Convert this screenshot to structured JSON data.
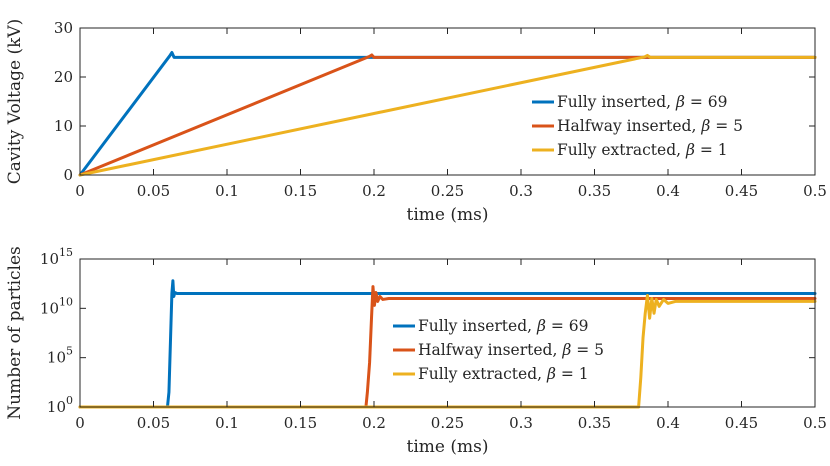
{
  "chart_data": [
    {
      "type": "line",
      "ylabel": "Cavity Voltage (kV)",
      "xlabel": "time (ms)",
      "xlim": [
        0,
        0.5
      ],
      "ylim": [
        0,
        30
      ],
      "xticks": [
        "0",
        "0.05",
        "0.1",
        "0.15",
        "0.2",
        "0.25",
        "0.3",
        "0.35",
        "0.4",
        "0.45",
        "0.5"
      ],
      "yticks": [
        "0",
        "10",
        "20",
        "30"
      ],
      "legend_position": "middle-right",
      "series": [
        {
          "name": "Fully inserted, β = 69",
          "name_prefix": "Fully inserted, ",
          "beta_symbol": "β",
          "beta_value": "= 69",
          "color": "#0072BD",
          "x": [
            0,
            0.061,
            0.0625,
            0.064,
            0.065,
            0.5
          ],
          "y": [
            0,
            24.3,
            25.0,
            24.0,
            24.0,
            24.0
          ]
        },
        {
          "name": "Halfway inserted, β = 5",
          "name_prefix": "Halfway inserted, ",
          "beta_symbol": "β",
          "beta_value": "= 5",
          "color": "#D95319",
          "x": [
            0,
            0.197,
            0.1985,
            0.2,
            0.5
          ],
          "y": [
            0,
            24.2,
            24.5,
            24.0,
            24.0
          ]
        },
        {
          "name": "Fully extracted, β = 1",
          "name_prefix": "Fully extracted, ",
          "beta_symbol": "β",
          "beta_value": "= 1",
          "color": "#EDB120",
          "x": [
            0,
            0.384,
            0.386,
            0.388,
            0.5
          ],
          "y": [
            0,
            24.1,
            24.4,
            24.0,
            24.0
          ]
        }
      ]
    },
    {
      "type": "line",
      "ylabel": "Number of particles",
      "xlabel": "time (ms)",
      "xlim": [
        0,
        0.5
      ],
      "yscale": "log",
      "ylim_exponent": [
        0,
        15
      ],
      "xticks": [
        "0",
        "0.05",
        "0.1",
        "0.15",
        "0.2",
        "0.25",
        "0.3",
        "0.35",
        "0.4",
        "0.45",
        "0.5"
      ],
      "yticks": [
        {
          "base": "10",
          "exp": "0"
        },
        {
          "base": "10",
          "exp": "5"
        },
        {
          "base": "10",
          "exp": "10"
        },
        {
          "base": "10",
          "exp": "15"
        }
      ],
      "legend_position": "middle",
      "series": [
        {
          "name": "Fully inserted, β = 69",
          "name_prefix": "Fully inserted, ",
          "beta_symbol": "β",
          "beta_value": "= 69",
          "color": "#0072BD",
          "x": [
            0,
            0.0595,
            0.0605,
            0.0615,
            0.0625,
            0.0632,
            0.0638,
            0.0645,
            0.066,
            0.5
          ],
          "y_log10": [
            0,
            0,
            1.5,
            6.5,
            11.5,
            12.8,
            11.2,
            11.6,
            11.5,
            11.5
          ]
        },
        {
          "name": "Halfway inserted, β = 5",
          "name_prefix": "Halfway inserted, ",
          "beta_symbol": "β",
          "beta_value": "= 5",
          "color": "#D95319",
          "x": [
            0,
            0.1945,
            0.1955,
            0.197,
            0.1983,
            0.1993,
            0.2003,
            0.2013,
            0.2025,
            0.204,
            0.206,
            0.21,
            0.5
          ],
          "y_log10": [
            0,
            0,
            1.5,
            4.5,
            9.0,
            12.2,
            10.3,
            11.6,
            10.7,
            11.2,
            10.9,
            11.0,
            11.0
          ]
        },
        {
          "name": "Fully extracted, β = 1",
          "name_prefix": "Fully extracted, ",
          "beta_symbol": "β",
          "beta_value": "= 1",
          "color": "#EDB120",
          "x": [
            0,
            0.38,
            0.3815,
            0.383,
            0.3845,
            0.386,
            0.3875,
            0.389,
            0.3905,
            0.392,
            0.394,
            0.397,
            0.4,
            0.405,
            0.5
          ],
          "y_log10": [
            0,
            0,
            3.0,
            7.0,
            9.5,
            11.3,
            9.0,
            11.0,
            9.5,
            10.9,
            10.2,
            10.9,
            10.5,
            10.7,
            10.7
          ]
        }
      ]
    }
  ]
}
